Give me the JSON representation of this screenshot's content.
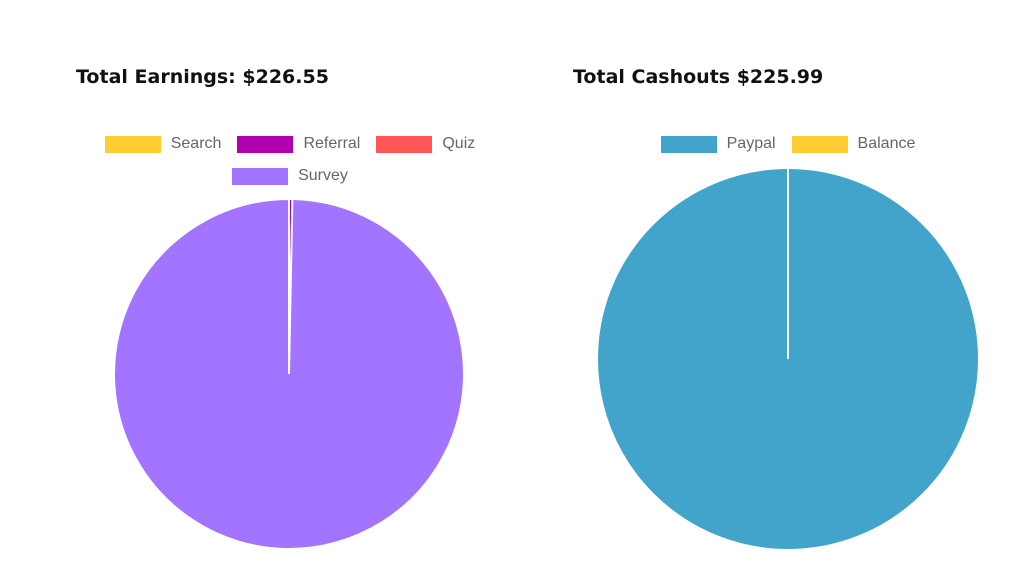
{
  "chart_data": [
    {
      "type": "pie",
      "title": "Total Earnings: $226.55",
      "legend_position": "top",
      "categories": [
        "Search",
        "Referral",
        "Quiz",
        "Survey"
      ],
      "values": [
        0,
        0.7,
        0,
        225.85
      ],
      "colors": [
        "#ffcd33",
        "#b000b0",
        "#ff5555",
        "#a274ff"
      ]
    },
    {
      "type": "pie",
      "title": "Total Cashouts $225.99",
      "legend_position": "top",
      "categories": [
        "Paypal",
        "Balance"
      ],
      "values": [
        225.99,
        0
      ],
      "colors": [
        "#42a4cb",
        "#ffcd33"
      ]
    }
  ]
}
